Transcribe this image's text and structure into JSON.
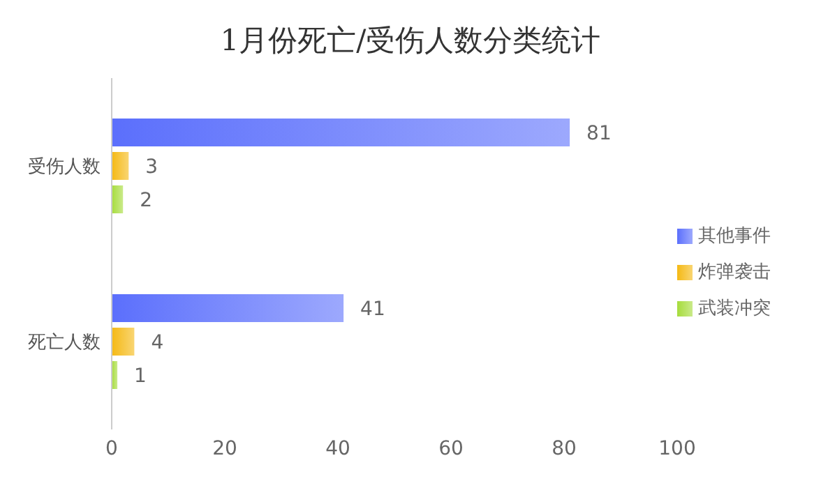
{
  "chart_data": {
    "type": "bar",
    "orientation": "horizontal",
    "title": "1月份死亡/受伤人数分类统计",
    "categories": [
      "受伤人数",
      "死亡人数"
    ],
    "series": [
      {
        "name": "其他事件",
        "color": "#5b6ffc",
        "values": [
          81,
          41
        ]
      },
      {
        "name": "炸弹袭击",
        "color": "#f5b914",
        "values": [
          3,
          4
        ]
      },
      {
        "name": "武装冲突",
        "color": "#a6dc3c",
        "values": [
          2,
          1
        ]
      }
    ],
    "xlim": [
      0,
      100
    ],
    "xticks": [
      0,
      20,
      40,
      60,
      80,
      100
    ],
    "grid": false,
    "legend": "right",
    "data_labels": true
  }
}
